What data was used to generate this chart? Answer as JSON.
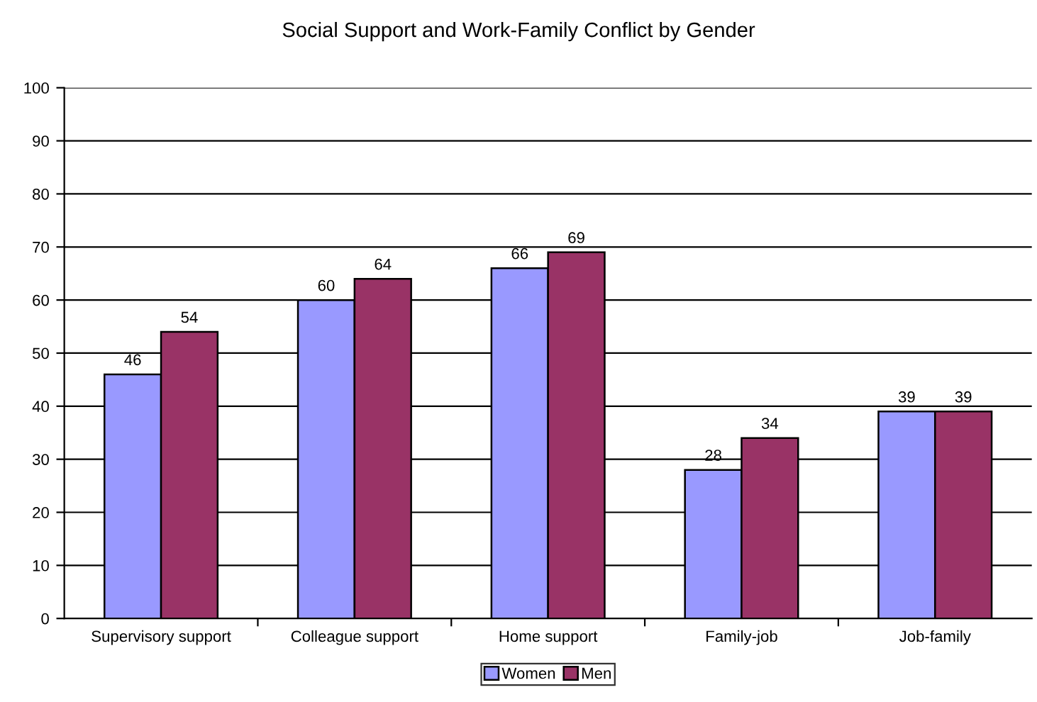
{
  "chart_data": {
    "type": "bar",
    "title": "Social Support and Work-Family Conflict by Gender",
    "categories": [
      "Supervisory support",
      "Colleague support",
      "Home support",
      "Family-job",
      "Job-family"
    ],
    "series": [
      {
        "name": "Women",
        "color": "#9999ff",
        "values": [
          46,
          60,
          66,
          28,
          39
        ]
      },
      {
        "name": "Men",
        "color": "#993366",
        "values": [
          54,
          64,
          69,
          34,
          39
        ]
      }
    ],
    "ylim": [
      0,
      100
    ],
    "yticks": [
      0,
      10,
      20,
      30,
      40,
      50,
      60,
      70,
      80,
      90,
      100
    ],
    "grid": "y",
    "legend": "bottom",
    "data_labels": true
  }
}
